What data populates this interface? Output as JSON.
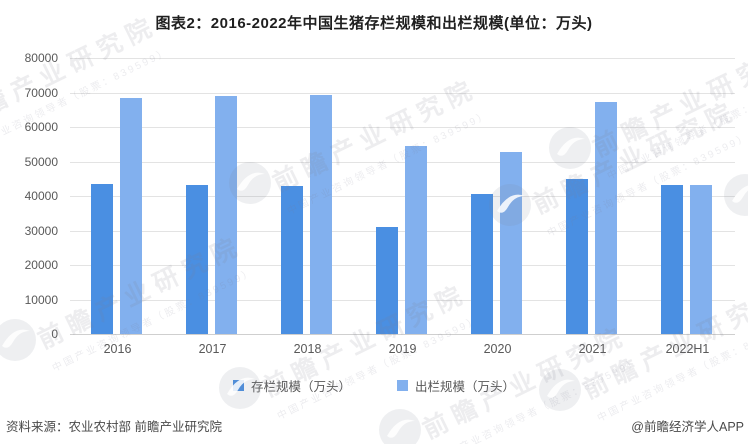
{
  "title": "图表2：2016-2022年中国生猪存栏规模和出栏规模(单位：万头)",
  "chart_data": {
    "type": "bar",
    "title": "图表2：2016-2022年中国生猪存栏规模和出栏规模(单位：万头)",
    "unit": "万头",
    "categories": [
      "2016",
      "2017",
      "2018",
      "2019",
      "2020",
      "2021",
      "2022H1"
    ],
    "series": [
      {
        "key": "inventory",
        "name": "存栏规模（万头）",
        "color": "#4A8FE2",
        "values": [
          43504,
          43325,
          42817,
          31041,
          40650,
          44922,
          43057
        ]
      },
      {
        "key": "output",
        "name": "出栏规模（万头）",
        "color": "#82B0EE",
        "values": [
          68502,
          68861,
          69382,
          54419,
          52704,
          67128,
          43100
        ]
      }
    ],
    "ylim": [
      0,
      80000
    ],
    "ytick_step": 10000,
    "ytick_labels": [
      "0",
      "10000",
      "20000",
      "30000",
      "40000",
      "50000",
      "60000",
      "70000",
      "80000"
    ],
    "grid": "horizontal",
    "legend_position": "bottom",
    "xlabel": "",
    "ylabel": ""
  },
  "legend": {
    "items": [
      {
        "label": "存栏规模（万头）",
        "color": "#4A8FE2"
      },
      {
        "label": "出栏规模（万头）",
        "color": "#82B0EE"
      }
    ]
  },
  "footer": {
    "source": "资料来源：农业农村部 前瞻产业研究院",
    "credit": "@前瞻经济学人APP"
  },
  "watermark": {
    "big": "前瞻产业研究院",
    "small": "中国产业咨询领导者（股票：839599）"
  },
  "colors": {
    "series_dark": "#4A8FE2",
    "series_light": "#82B0EE",
    "gridline": "#e3e3e3",
    "axis_baseline": "#cfcfcf",
    "tick_text": "#595959",
    "title_text": "#1f1f1f",
    "footer_text": "#4a4a4a"
  }
}
